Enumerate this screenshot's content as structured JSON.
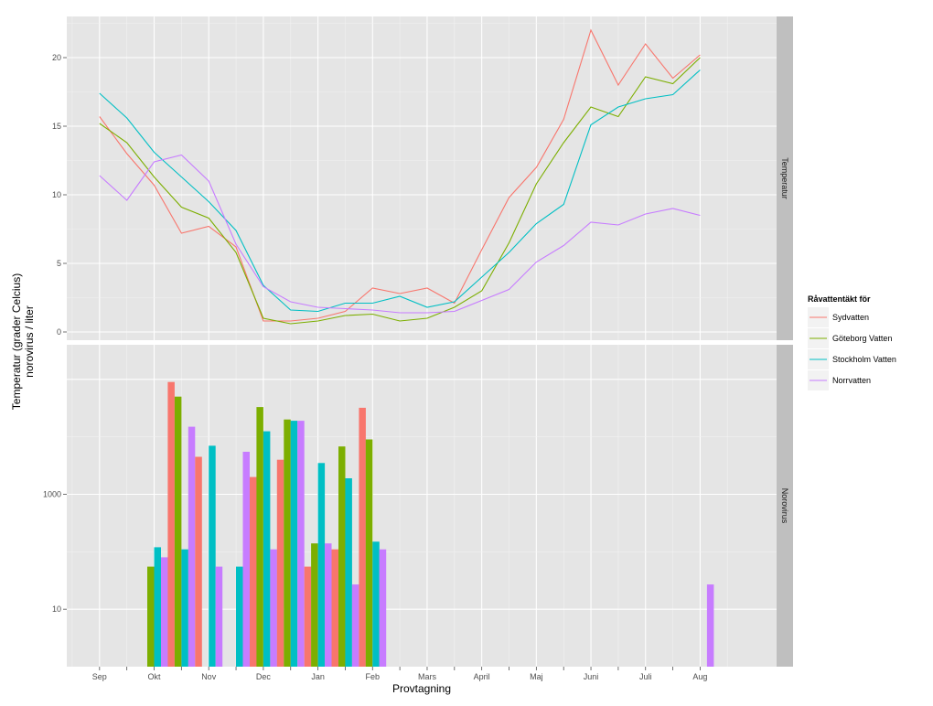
{
  "colors": {
    "panel": "#e5e5e5",
    "grid_major": "#ffffff",
    "grid_minor": "#f2f2f2",
    "strip": "#bfbfbf",
    "tick": "#4d4d4d"
  },
  "chart_data": {
    "type": "faceted line + bar",
    "xlabel": "Provtagning",
    "ylabel_line1": "Temperatur (grader Celcius)",
    "ylabel_line2": "norovirus / liter",
    "x_ticks": [
      "Sep",
      "Okt",
      "Nov",
      "Dec",
      "Jan",
      "Feb",
      "Mars",
      "April",
      "Maj",
      "Juni",
      "Juli",
      "Aug"
    ],
    "x_range": [
      -0.6,
      12.4
    ],
    "legend": {
      "title": "Råvattentäkt för",
      "placement": "right",
      "series": [
        {
          "name": "Sydvatten",
          "color": "#f8766d"
        },
        {
          "name": "Göteborg Vatten",
          "color": "#7cae00"
        },
        {
          "name": "Stockholm Vatten",
          "color": "#00bfc4"
        },
        {
          "name": "Norrvatten",
          "color": "#c77cff"
        }
      ]
    },
    "panels": [
      {
        "strip": "Temperatur",
        "type": "line",
        "y_range": [
          -0.6,
          23.0
        ],
        "y_ticks": [
          0,
          5,
          10,
          15,
          20
        ],
        "x": [
          0,
          0.5,
          1,
          1.5,
          2,
          2.5,
          3,
          3.5,
          4,
          4.5,
          5,
          5.5,
          6,
          6.5,
          7,
          7.5,
          8,
          8.5,
          9,
          9.5,
          10,
          10.5,
          11
        ],
        "series": [
          {
            "name": "Sydvatten",
            "values": [
              15.7,
              13.0,
              10.7,
              7.2,
              7.7,
              6.2,
              0.8,
              0.8,
              1.0,
              1.5,
              3.2,
              2.8,
              3.2,
              2.1,
              6.0,
              9.8,
              12.0,
              15.5,
              22.0,
              18.0,
              21.0,
              18.5,
              20.2
            ]
          },
          {
            "name": "Göteborg Vatten",
            "values": [
              15.2,
              13.8,
              11.3,
              9.1,
              8.3,
              5.8,
              1.0,
              0.6,
              0.8,
              1.2,
              1.3,
              0.8,
              1.0,
              1.8,
              3.0,
              6.5,
              10.8,
              13.8,
              16.4,
              15.7,
              18.6,
              18.1,
              20.0
            ]
          },
          {
            "name": "Stockholm Vatten",
            "values": [
              17.4,
              15.6,
              13.1,
              11.3,
              9.5,
              7.4,
              3.4,
              1.6,
              1.5,
              2.1,
              2.1,
              2.6,
              1.8,
              2.2,
              4.0,
              5.8,
              7.9,
              9.3,
              15.1,
              16.4,
              17.0,
              17.3,
              19.1
            ]
          },
          {
            "name": "Norrvatten",
            "values": [
              11.4,
              9.6,
              12.4,
              12.9,
              11.0,
              6.4,
              3.3,
              2.2,
              1.8,
              1.7,
              1.6,
              1.4,
              1.4,
              1.5,
              2.3,
              3.1,
              5.1,
              6.3,
              8.0,
              7.8,
              8.6,
              9.0,
              8.5
            ]
          }
        ]
      },
      {
        "strip": "Norovirus",
        "type": "bar",
        "y_scale": "log10",
        "y_range": [
          1,
          400000
        ],
        "y_ticks": [
          10,
          1000
        ],
        "baseline": 1,
        "bar_width": 0.125,
        "groups": [
          {
            "x": 1.0,
            "values": [
              null,
              55,
              120,
              80
            ]
          },
          {
            "x": 1.5,
            "values": [
              90000,
              50000,
              110,
              15000
            ]
          },
          {
            "x": 2.0,
            "values": [
              4500,
              null,
              7000,
              55
            ]
          },
          {
            "x": 2.5,
            "values": [
              null,
              null,
              55,
              5500
            ]
          },
          {
            "x": 3.0,
            "values": [
              2000,
              33000,
              12500,
              110
            ]
          },
          {
            "x": 3.5,
            "values": [
              4000,
              20000,
              19000,
              19000
            ]
          },
          {
            "x": 4.0,
            "values": [
              55,
              140,
              3500,
              140
            ]
          },
          {
            "x": 4.5,
            "values": [
              110,
              6800,
              1900,
              27
            ]
          },
          {
            "x": 5.0,
            "values": [
              32000,
              9000,
              150,
              110
            ]
          },
          {
            "x": 11.0,
            "values": [
              null,
              null,
              null,
              27
            ]
          }
        ]
      }
    ]
  }
}
